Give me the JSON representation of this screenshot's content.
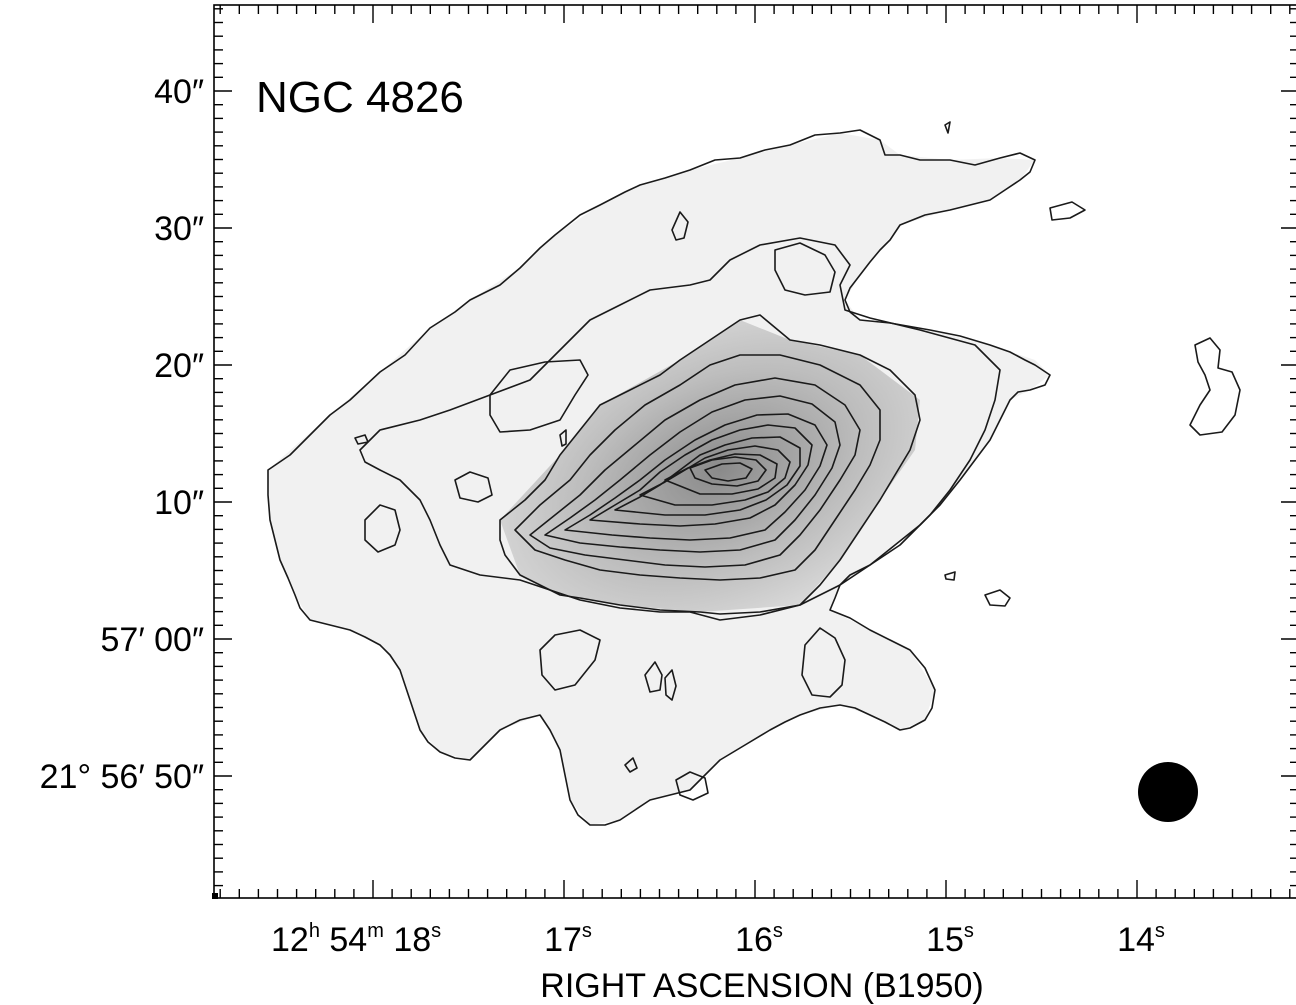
{
  "title": "NGC 4826",
  "x_axis": {
    "label": "RIGHT ASCENSION (B1950)",
    "ticks": [
      {
        "value": 18,
        "parts": [
          "12",
          "h",
          " 54",
          "m",
          " 18",
          "s"
        ]
      },
      {
        "value": 17,
        "parts": [
          "17",
          "s"
        ]
      },
      {
        "value": 16,
        "parts": [
          "16",
          "s"
        ]
      },
      {
        "value": 15,
        "parts": [
          "15",
          "s"
        ]
      },
      {
        "value": 14,
        "parts": [
          "14",
          "s"
        ]
      }
    ]
  },
  "y_axis": {
    "ticks": [
      {
        "value": 40,
        "label": "40″"
      },
      {
        "value": 30,
        "label": "30″"
      },
      {
        "value": 20,
        "label": "20″"
      },
      {
        "value": 10,
        "label": "10″"
      },
      {
        "value": 0,
        "label": "57′ 00″"
      },
      {
        "value": -10,
        "label": "21° 56′ 50″"
      }
    ]
  },
  "beam": {
    "shape": "filled-circle",
    "color": "#000000"
  },
  "colors": {
    "contour": "#1a1a1a",
    "background": "#ffffff",
    "beam": "#000000"
  }
}
